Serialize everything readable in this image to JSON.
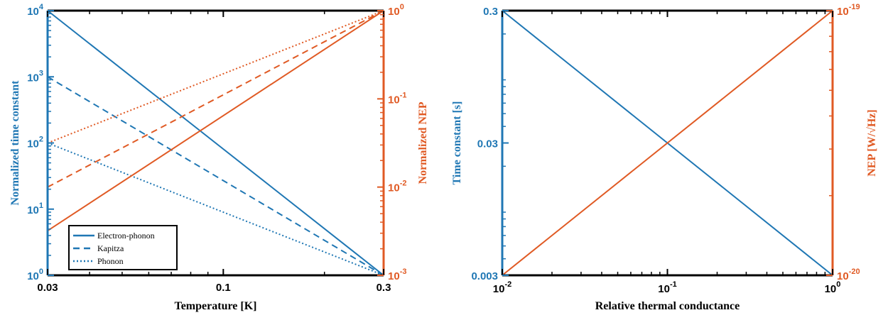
{
  "colors": {
    "blue": "#1f77b4",
    "orange": "#e05a24",
    "axis": "#000000"
  },
  "chart_data": [
    {
      "type": "line",
      "xscale": "log",
      "xlim": [
        0.03,
        0.3
      ],
      "xticks": [
        0.03,
        0.1,
        0.3
      ],
      "xtick_labels": [
        "0.03",
        "0.1",
        "0.3"
      ],
      "xlabel": "Temperature [K]",
      "y_left": {
        "scale": "log",
        "lim": [
          1,
          10000
        ],
        "ticks": [
          1,
          10,
          100,
          1000,
          10000
        ],
        "tick_exponents": [
          "0",
          "1",
          "2",
          "3",
          "4"
        ],
        "label": "Normalized time constant",
        "color": "blue"
      },
      "y_right": {
        "scale": "log",
        "lim": [
          0.001,
          1
        ],
        "ticks": [
          0.001,
          0.01,
          0.1,
          1
        ],
        "tick_exponents": [
          "-3",
          "-2",
          "-1",
          "0"
        ],
        "label": "Normalized NEP",
        "color": "orange"
      },
      "series": [
        {
          "name": "Electron-phonon",
          "axis": "left",
          "color": "blue",
          "dash": "solid",
          "x": [
            0.03,
            0.3
          ],
          "y": [
            10000,
            1
          ]
        },
        {
          "name": "Kapitza",
          "axis": "left",
          "color": "blue",
          "dash": "dashed",
          "x": [
            0.03,
            0.3
          ],
          "y": [
            1000,
            1
          ]
        },
        {
          "name": "Phonon",
          "axis": "left",
          "color": "blue",
          "dash": "dotted",
          "x": [
            0.03,
            0.3
          ],
          "y": [
            100,
            1
          ]
        },
        {
          "axis": "right",
          "color": "orange",
          "dash": "solid",
          "x": [
            0.03,
            0.3
          ],
          "y": [
            0.0032,
            1
          ]
        },
        {
          "axis": "right",
          "color": "orange",
          "dash": "dashed",
          "x": [
            0.03,
            0.3
          ],
          "y": [
            0.01,
            1
          ]
        },
        {
          "axis": "right",
          "color": "orange",
          "dash": "dotted",
          "x": [
            0.03,
            0.3
          ],
          "y": [
            0.0316,
            1
          ]
        }
      ],
      "legend": {
        "placement": "bottom-left",
        "entries": [
          "Electron-phonon",
          "Kapitza",
          "Phonon"
        ]
      }
    },
    {
      "type": "line",
      "xscale": "log",
      "xlim": [
        0.01,
        1
      ],
      "xticks": [
        0.01,
        0.1,
        1
      ],
      "xtick_exponents": [
        "-2",
        "-1",
        "0"
      ],
      "xlabel": "Relative thermal conductance",
      "y_left": {
        "scale": "log",
        "lim": [
          0.003,
          0.3
        ],
        "ticks": [
          0.003,
          0.03,
          0.3
        ],
        "tick_labels": [
          "0.003",
          "0.03",
          "0.3"
        ],
        "label": "Time constant [s]",
        "color": "blue"
      },
      "y_right": {
        "scale": "log",
        "lim": [
          1e-20,
          1e-19
        ],
        "ticks": [
          1e-20,
          1e-19
        ],
        "tick_exponents": [
          "-20",
          "-19"
        ],
        "label_prefix": "NEP [W/",
        "label_root": "Hz",
        "label_suffix": "]",
        "color": "orange"
      },
      "series": [
        {
          "axis": "left",
          "color": "blue",
          "dash": "solid",
          "x": [
            0.01,
            1
          ],
          "y": [
            0.3,
            0.003
          ]
        },
        {
          "axis": "right",
          "color": "orange",
          "dash": "solid",
          "x": [
            0.01,
            1
          ],
          "y": [
            1e-20,
            1e-19
          ]
        }
      ]
    }
  ]
}
